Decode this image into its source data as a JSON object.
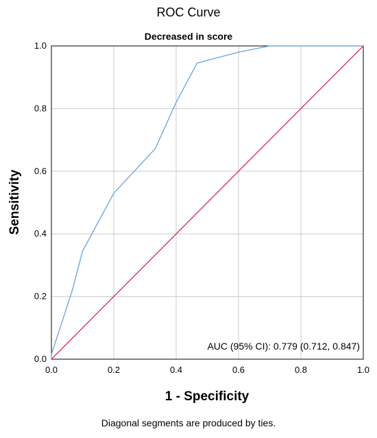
{
  "chart_data": {
    "type": "line",
    "title": "ROC Curve",
    "subtitle": "Decreased in score",
    "xlabel": "1 - Specificity",
    "ylabel": "Sensitivity",
    "xlim": [
      0.0,
      1.0
    ],
    "ylim": [
      0.0,
      1.0
    ],
    "x_ticks": [
      "0.0",
      "0.2",
      "0.4",
      "0.6",
      "0.8",
      "1.0"
    ],
    "y_ticks": [
      "0.0",
      "0.2",
      "0.4",
      "0.6",
      "0.8",
      "1.0"
    ],
    "grid": true,
    "annotation": "AUC (95% CI): 0.779 (0.712, 0.847)",
    "footnote": "Diagonal segments are produced by ties.",
    "series": [
      {
        "color": "#6fa8dc",
        "x": [
          0.0,
          0.0,
          0.067,
          0.1,
          0.2,
          0.333,
          0.4,
          0.467,
          0.6,
          0.7,
          1.0
        ],
        "y": [
          0.0,
          0.015,
          0.22,
          0.345,
          0.53,
          0.672,
          0.82,
          0.945,
          0.98,
          1.0,
          1.0
        ]
      },
      {
        "color": "#e0325a",
        "x": [
          0.0,
          1.0
        ],
        "y": [
          0.0,
          1.0
        ]
      }
    ]
  }
}
